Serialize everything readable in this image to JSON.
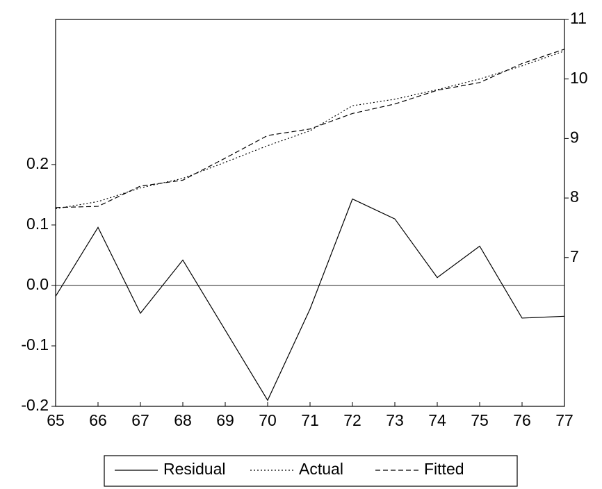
{
  "chart_data": {
    "type": "line",
    "x": [
      65,
      66,
      67,
      68,
      69,
      70,
      71,
      72,
      73,
      74,
      75,
      76,
      77
    ],
    "xlim": [
      65,
      77
    ],
    "xticks": [
      65,
      66,
      67,
      68,
      69,
      70,
      71,
      72,
      73,
      74,
      75,
      76,
      77
    ],
    "ylim": [
      -0.2,
      0.44
    ],
    "yticks": [
      -0.2,
      -0.1,
      {
        "value": 0,
        "label": "0.0"
      },
      0.1,
      0.2
    ],
    "y2lim": [
      4.5,
      11
    ],
    "y2ticks": [
      7,
      8,
      9,
      10,
      11
    ],
    "zero_line": true,
    "legend": "bottom",
    "series": [
      {
        "name": "Residual",
        "color": "#000000",
        "line_style": "solid",
        "values": [
          -0.018,
          0.096,
          -0.046,
          0.042,
          -0.074,
          -0.19,
          -0.039,
          0.143,
          0.11,
          0.013,
          0.065,
          -0.054,
          -0.051
        ]
      },
      {
        "name": "Actual",
        "color": "#000000",
        "line_style": "dotted",
        "axis": "y2",
        "values": [
          7.82,
          7.94,
          8.17,
          8.33,
          8.6,
          8.88,
          9.13,
          9.55,
          9.66,
          9.82,
          10.0,
          10.22,
          10.47
        ]
      },
      {
        "name": "Fitted",
        "color": "#000000",
        "line_style": "dashed",
        "axis": "y2",
        "values": [
          7.84,
          7.86,
          8.2,
          8.3,
          8.67,
          9.05,
          9.16,
          9.42,
          9.58,
          9.81,
          9.94,
          10.26,
          10.5
        ]
      }
    ]
  }
}
